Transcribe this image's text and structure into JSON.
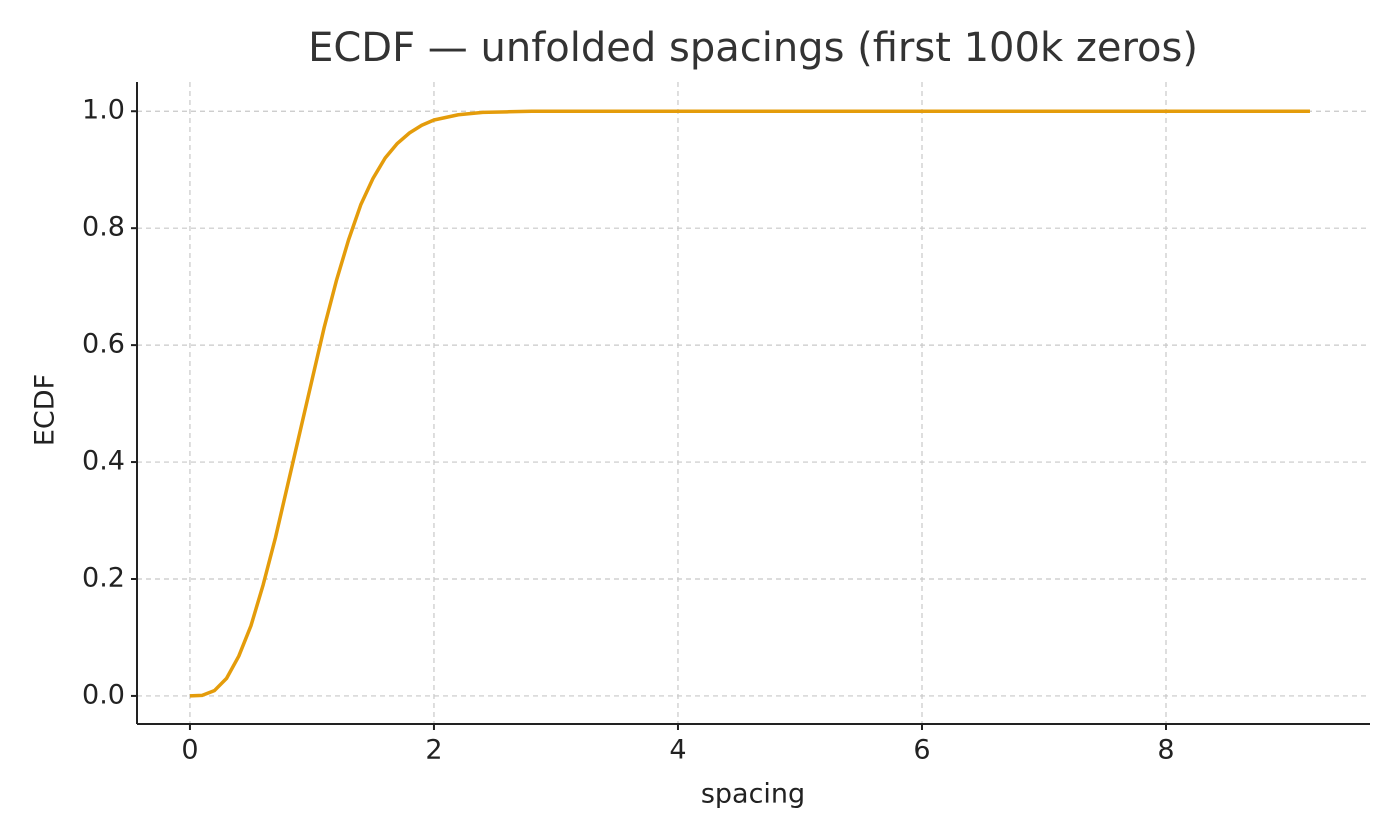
{
  "chart_data": {
    "type": "line",
    "title": "ECDF — unfolded spacings (first 100k zeros)",
    "x_label": "spacing",
    "y_label": "ECDF",
    "x": [
      0,
      0.1,
      0.2,
      0.3,
      0.4,
      0.5,
      0.6,
      0.7,
      0.8,
      0.9,
      1.0,
      1.1,
      1.2,
      1.3,
      1.4,
      1.5,
      1.6,
      1.7,
      1.8,
      1.9,
      2.0,
      2.2,
      2.4,
      2.6,
      2.8,
      3.0,
      4,
      6,
      8,
      9.18
    ],
    "series": [
      {
        "name": "ECDF",
        "color": "#e49c0b",
        "values": [
          0,
          0.001,
          0.009,
          0.03,
          0.068,
          0.12,
          0.19,
          0.27,
          0.36,
          0.45,
          0.54,
          0.63,
          0.71,
          0.78,
          0.84,
          0.885,
          0.92,
          0.945,
          0.963,
          0.976,
          0.985,
          0.994,
          0.998,
          0.999,
          1.0,
          1.0,
          1.0,
          1.0,
          1.0,
          1.0
        ]
      }
    ],
    "xlim": [
      -0.434,
      9.672
    ],
    "ylim": [
      -0.048,
      1.05
    ],
    "xticks": [
      0,
      2,
      4,
      6,
      8
    ],
    "yticks": [
      {
        "value": 0,
        "label": "0.0"
      },
      {
        "value": 0.2,
        "label": "0.2"
      },
      {
        "value": 0.4,
        "label": "0.4"
      },
      {
        "value": 0.6,
        "label": "0.6"
      },
      {
        "value": 0.8,
        "label": "0.8"
      },
      {
        "value": 1,
        "label": "1.0"
      }
    ],
    "grid": true
  }
}
